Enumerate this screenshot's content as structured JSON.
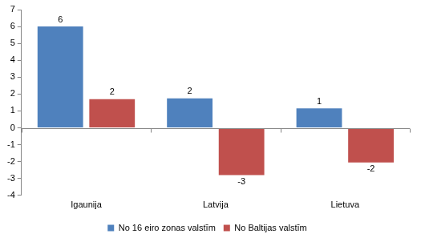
{
  "chart_data": {
    "type": "bar",
    "categories": [
      "Igaunija",
      "Latvija",
      "Lietuva"
    ],
    "series": [
      {
        "name": "No 16 eiro zonas valstīm",
        "color": "#4f81bd",
        "values": [
          6.0,
          1.75,
          1.15
        ],
        "value_labels": [
          "6",
          "2",
          "1"
        ]
      },
      {
        "name": "No Baltijas valstīm",
        "color": "#c0504d",
        "values": [
          1.7,
          -2.8,
          -2.05
        ],
        "value_labels": [
          "2",
          "-3",
          "-2"
        ]
      }
    ],
    "ylim": [
      -4,
      7
    ],
    "yticks": [
      -4,
      -3,
      -2,
      -1,
      0,
      1,
      2,
      3,
      4,
      5,
      6,
      7
    ],
    "grid": false,
    "legend": "bottom",
    "data_labels": true
  }
}
